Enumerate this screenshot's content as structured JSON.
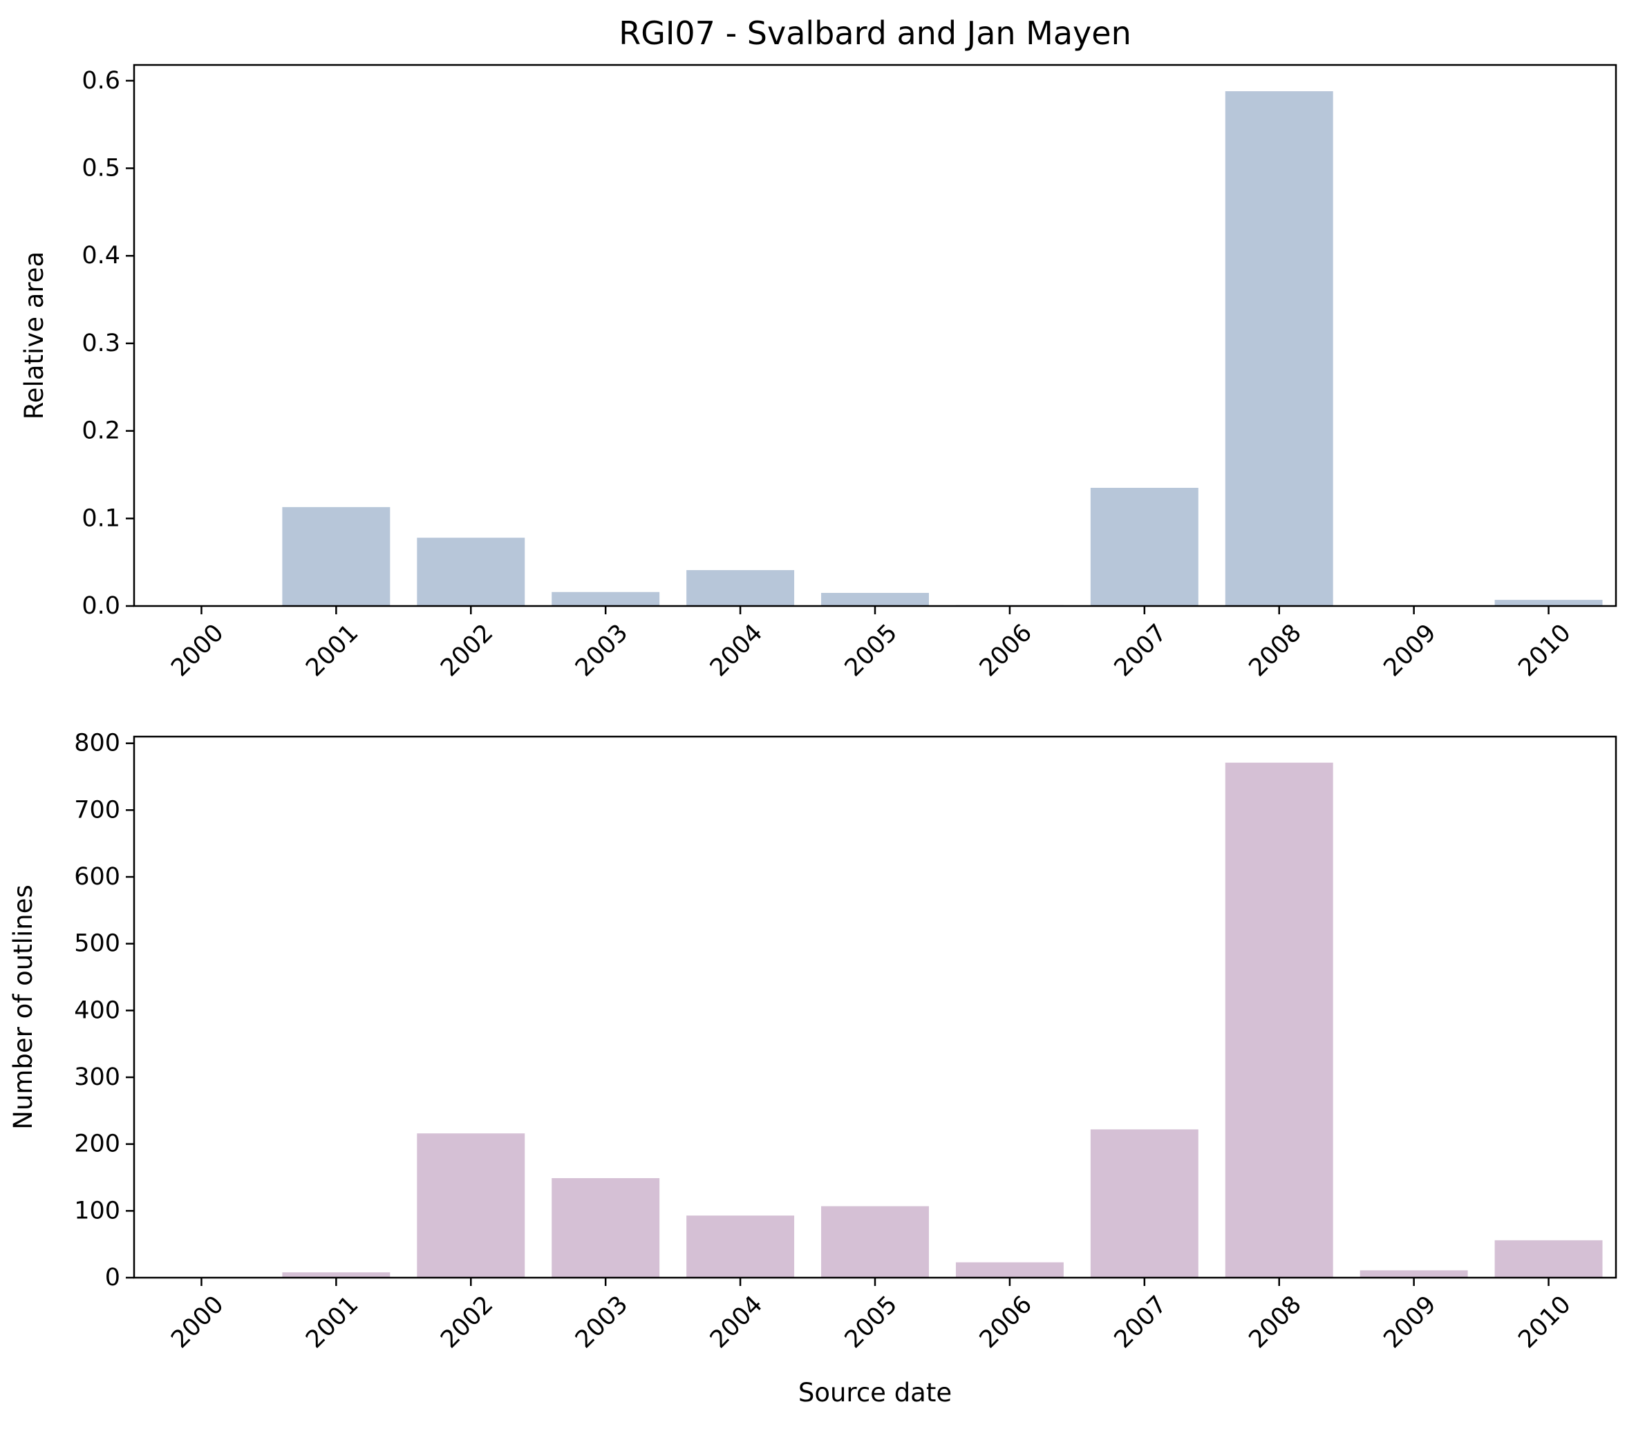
{
  "chart_data": [
    {
      "type": "bar",
      "title": "RGI07 - Svalbard and Jan Mayen",
      "xlabel": "",
      "ylabel": "Relative area",
      "categories": [
        "2000",
        "2001",
        "2002",
        "2003",
        "2004",
        "2005",
        "2006",
        "2007",
        "2008",
        "2009",
        "2010"
      ],
      "values": [
        0.0,
        0.113,
        0.078,
        0.016,
        0.041,
        0.015,
        0.001,
        0.135,
        0.588,
        0.0,
        0.007
      ],
      "ylim": [
        0,
        0.618
      ],
      "yticks": [
        0.0,
        0.1,
        0.2,
        0.3,
        0.4,
        0.5,
        0.6
      ],
      "ytick_labels": [
        "0.0",
        "0.1",
        "0.2",
        "0.3",
        "0.4",
        "0.5",
        "0.6"
      ],
      "color": "#b7c6d9",
      "grid": false
    },
    {
      "type": "bar",
      "title": "",
      "xlabel": "Source date",
      "ylabel": "Number of outlines",
      "categories": [
        "2000",
        "2001",
        "2002",
        "2003",
        "2004",
        "2005",
        "2006",
        "2007",
        "2008",
        "2009",
        "2010"
      ],
      "values": [
        0,
        8,
        216,
        149,
        93,
        107,
        23,
        222,
        771,
        11,
        56
      ],
      "ylim": [
        0,
        810
      ],
      "yticks": [
        0,
        100,
        200,
        300,
        400,
        500,
        600,
        700,
        800
      ],
      "ytick_labels": [
        "0",
        "100",
        "200",
        "300",
        "400",
        "500",
        "600",
        "700",
        "800"
      ],
      "color": "#d5c0d5",
      "grid": false
    }
  ]
}
